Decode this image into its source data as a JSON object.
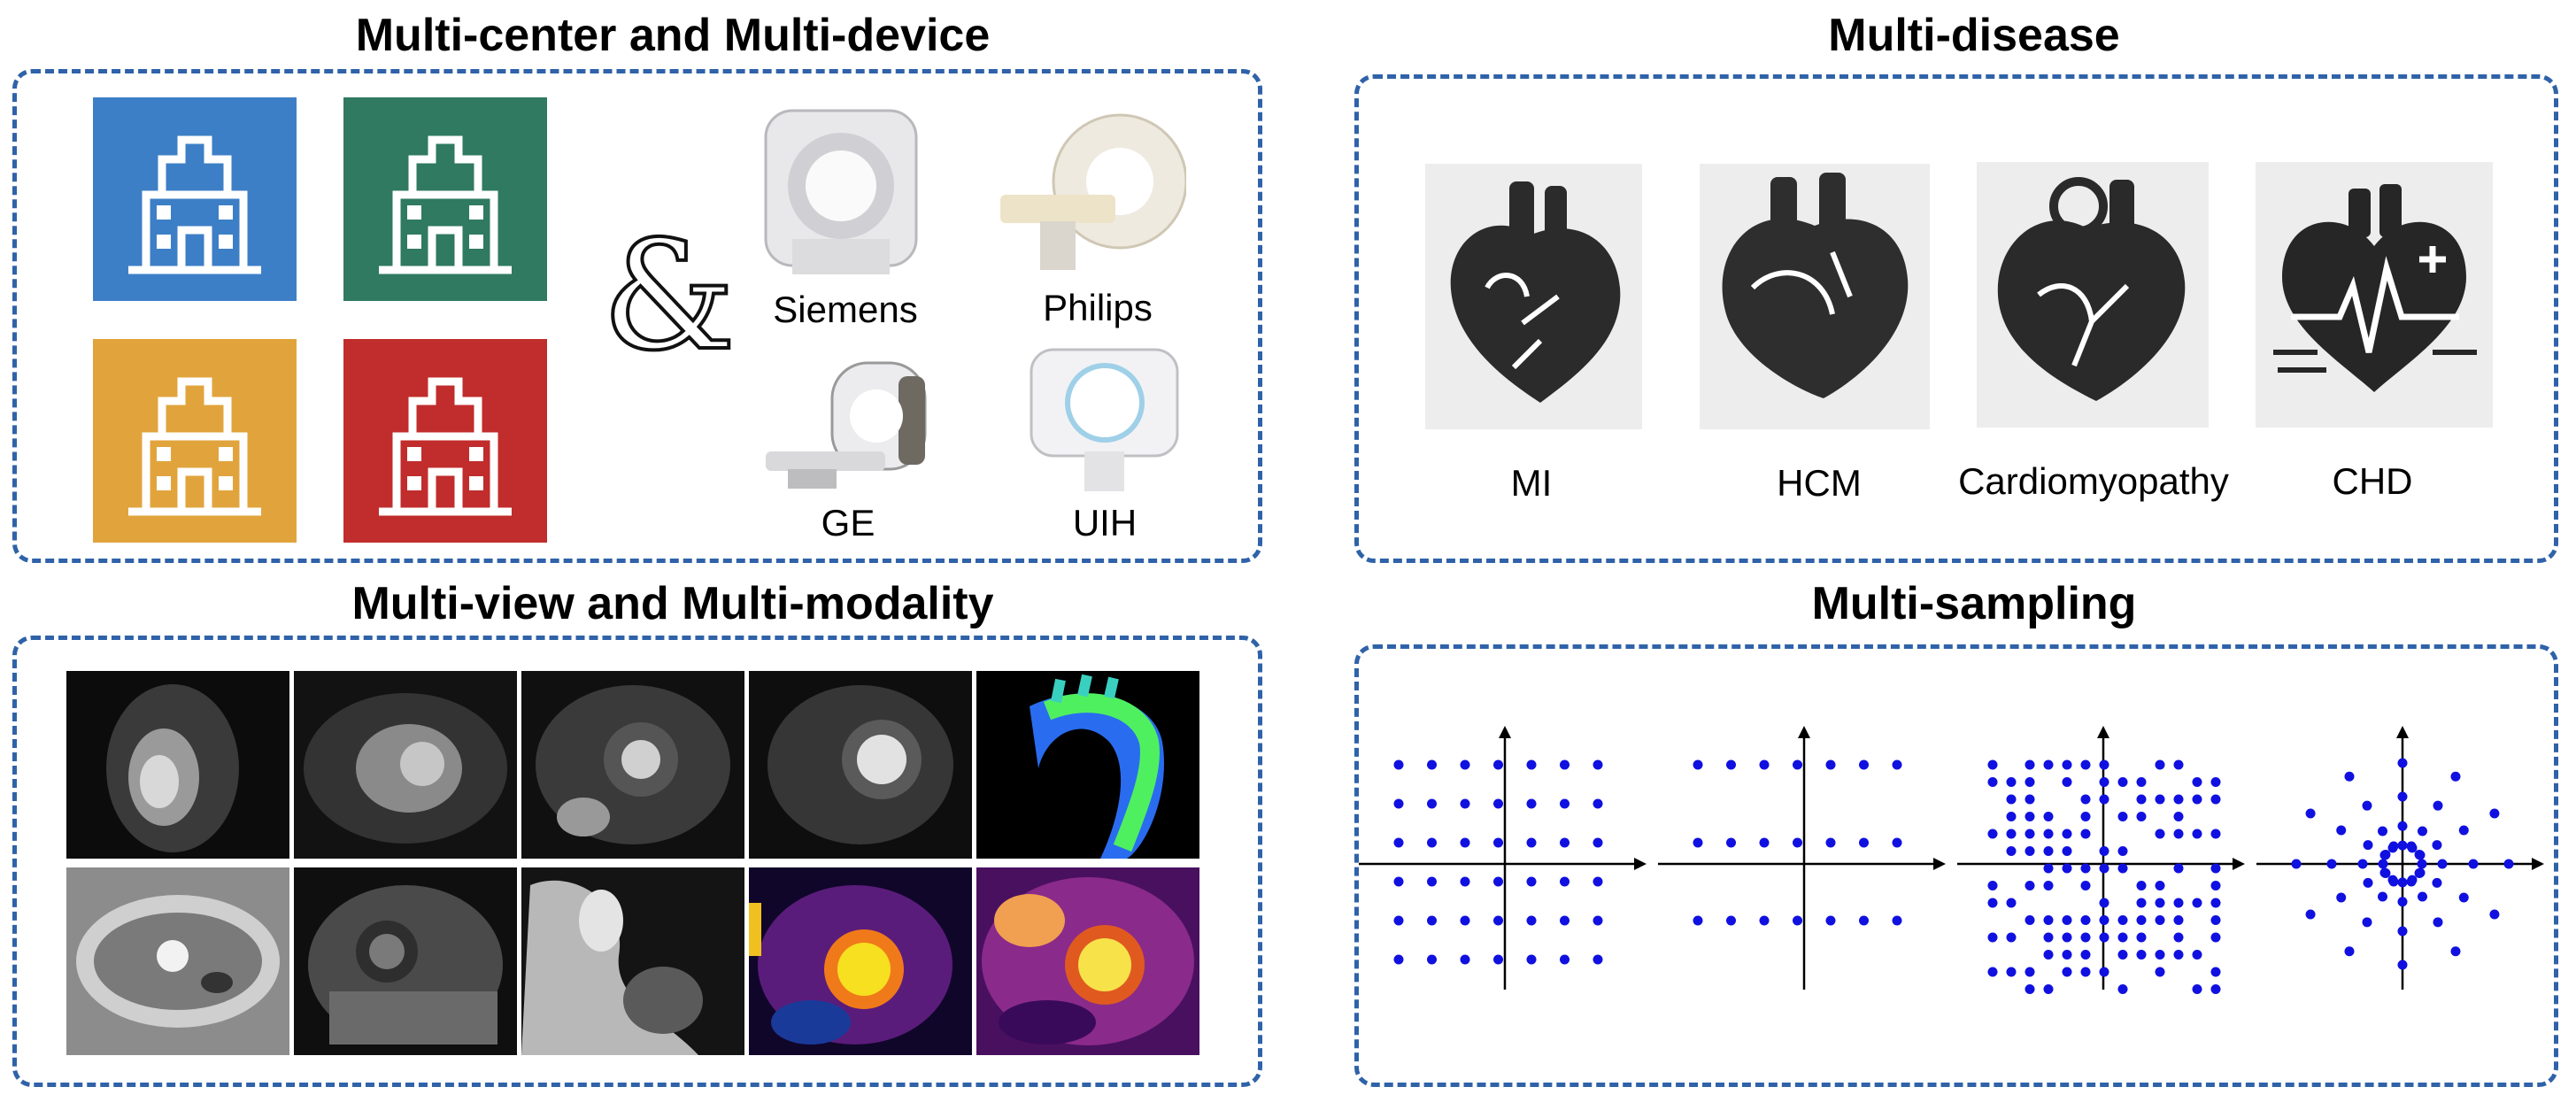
{
  "sections": {
    "center_device": "Multi-center and Multi-device",
    "disease": "Multi-disease",
    "view_modality": "Multi-view and Multi-modality",
    "sampling": "Multi-sampling"
  },
  "ampersand": "&",
  "hospitals": [
    {
      "color": "#3d7fc6",
      "icon": "hospital-icon"
    },
    {
      "color": "#2f7a61",
      "icon": "hospital-icon"
    },
    {
      "color": "#e1a43d",
      "icon": "hospital-icon"
    },
    {
      "color": "#c02d2c",
      "icon": "hospital-icon"
    }
  ],
  "devices": [
    "Siemens",
    "Philips",
    "GE",
    "UIH"
  ],
  "diseases": [
    "MI",
    "HCM",
    "Cardiomyopathy",
    "CHD"
  ],
  "colors": {
    "panel_border": "#2f62a8",
    "sample_dot": "#1010e0"
  },
  "sampling_patterns": [
    "uniform",
    "line-skip",
    "random",
    "radial"
  ]
}
